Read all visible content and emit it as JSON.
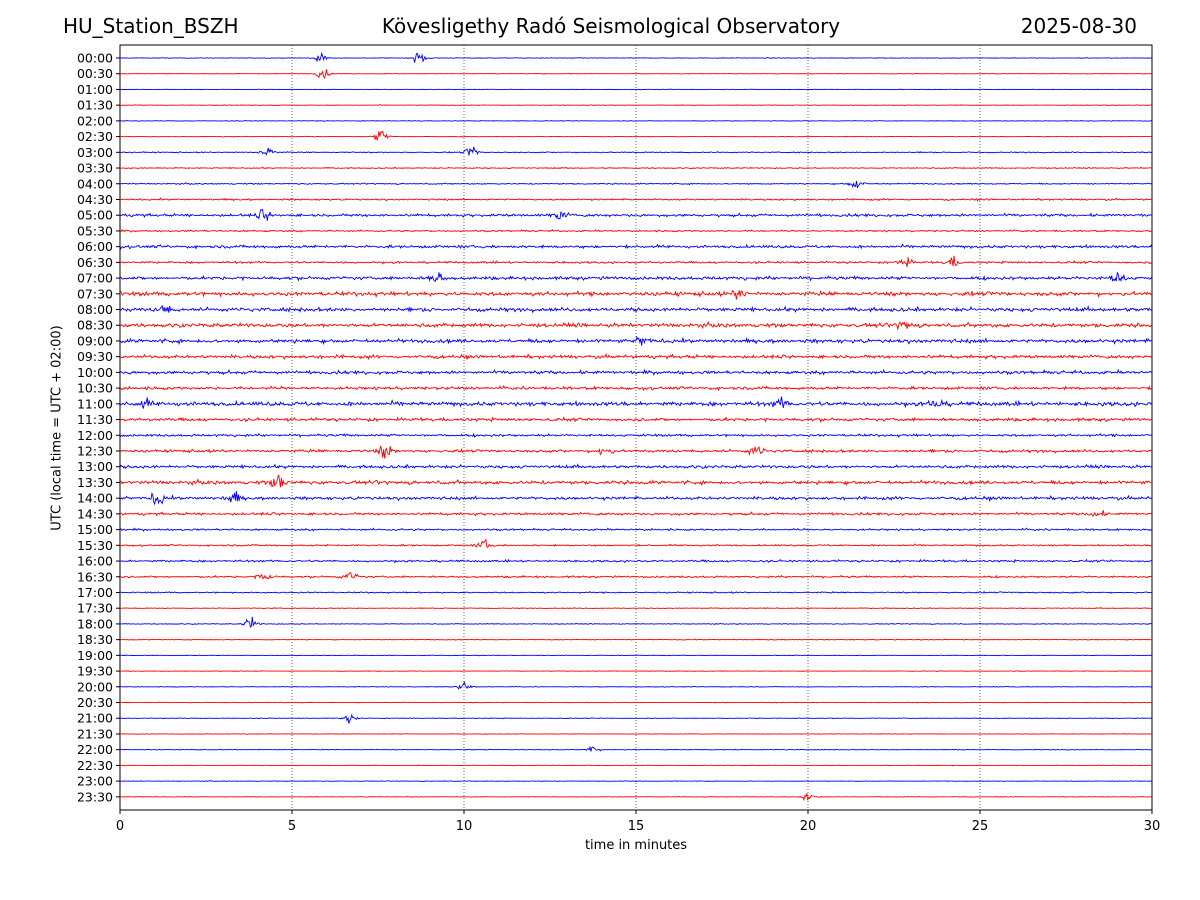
{
  "header": {
    "station": "HU_Station_BSZH",
    "title": "Kövesligethy Radó Seismological Observatory",
    "date": "2025-08-30"
  },
  "chart_data": {
    "type": "line",
    "title": "Kövesligethy Radó Seismological Observatory",
    "xlabel": "time in minutes",
    "ylabel": "UTC (local time = UTC + 02:00)",
    "xlim": [
      0,
      30
    ],
    "xticks": [
      0,
      5,
      10,
      15,
      20,
      25,
      30
    ],
    "grid": "vertical dotted at x ticks",
    "colors": {
      "even_rows": "#0000ff",
      "odd_rows": "#ff0000"
    },
    "rows": [
      "00:00",
      "00:30",
      "01:00",
      "01:30",
      "02:00",
      "02:30",
      "03:00",
      "03:30",
      "04:00",
      "04:30",
      "05:00",
      "05:30",
      "06:00",
      "06:30",
      "07:00",
      "07:30",
      "08:00",
      "08:30",
      "09:00",
      "09:30",
      "10:00",
      "10:30",
      "11:00",
      "11:30",
      "12:00",
      "12:30",
      "13:00",
      "13:30",
      "14:00",
      "14:30",
      "15:00",
      "15:30",
      "16:00",
      "16:30",
      "17:00",
      "17:30",
      "18:00",
      "18:30",
      "19:00",
      "19:30",
      "20:00",
      "20:30",
      "21:00",
      "21:30",
      "22:00",
      "22:30",
      "23:00",
      "23:30"
    ],
    "noise_level": [
      0.12,
      0.1,
      0.1,
      0.12,
      0.12,
      0.12,
      0.2,
      0.2,
      0.22,
      0.3,
      0.5,
      0.3,
      0.55,
      0.4,
      0.6,
      0.75,
      0.7,
      0.7,
      0.7,
      0.6,
      0.6,
      0.55,
      0.8,
      0.6,
      0.45,
      0.5,
      0.55,
      0.65,
      0.55,
      0.45,
      0.35,
      0.3,
      0.4,
      0.35,
      0.25,
      0.15,
      0.15,
      0.15,
      0.1,
      0.1,
      0.12,
      0.12,
      0.12,
      0.1,
      0.12,
      0.1,
      0.1,
      0.1
    ],
    "bursts": [
      {
        "row": "00:00",
        "t": 5.8,
        "amp": 2.0
      },
      {
        "row": "00:00",
        "t": 8.7,
        "amp": 2.5
      },
      {
        "row": "00:30",
        "t": 5.9,
        "amp": 2.0
      },
      {
        "row": "02:30",
        "t": 7.6,
        "amp": 3.0
      },
      {
        "row": "03:00",
        "t": 4.3,
        "amp": 2.5
      },
      {
        "row": "03:00",
        "t": 10.2,
        "amp": 2.0
      },
      {
        "row": "04:00",
        "t": 21.4,
        "amp": 2.5
      },
      {
        "row": "05:00",
        "t": 4.2,
        "amp": 2.5
      },
      {
        "row": "05:00",
        "t": 12.8,
        "amp": 2.0
      },
      {
        "row": "06:30",
        "t": 22.8,
        "amp": 2.0
      },
      {
        "row": "06:30",
        "t": 24.2,
        "amp": 2.2
      },
      {
        "row": "07:00",
        "t": 9.2,
        "amp": 2.5
      },
      {
        "row": "07:00",
        "t": 29.0,
        "amp": 2.0
      },
      {
        "row": "07:30",
        "t": 18.0,
        "amp": 2.0
      },
      {
        "row": "08:00",
        "t": 1.3,
        "amp": 2.0
      },
      {
        "row": "08:30",
        "t": 22.8,
        "amp": 2.0
      },
      {
        "row": "09:00",
        "t": 15.2,
        "amp": 2.0
      },
      {
        "row": "11:00",
        "t": 0.7,
        "amp": 1.8
      },
      {
        "row": "11:00",
        "t": 19.2,
        "amp": 2.0
      },
      {
        "row": "11:00",
        "t": 23.7,
        "amp": 2.2
      },
      {
        "row": "12:30",
        "t": 7.7,
        "amp": 3.0
      },
      {
        "row": "12:30",
        "t": 14.1,
        "amp": 2.5
      },
      {
        "row": "12:30",
        "t": 18.5,
        "amp": 2.5
      },
      {
        "row": "13:30",
        "t": 4.6,
        "amp": 3.5
      },
      {
        "row": "14:00",
        "t": 1.1,
        "amp": 2.5
      },
      {
        "row": "14:00",
        "t": 3.3,
        "amp": 2.5
      },
      {
        "row": "14:30",
        "t": 28.4,
        "amp": 2.0
      },
      {
        "row": "15:30",
        "t": 10.6,
        "amp": 2.0
      },
      {
        "row": "16:30",
        "t": 4.2,
        "amp": 2.0
      },
      {
        "row": "16:30",
        "t": 6.7,
        "amp": 2.0
      },
      {
        "row": "18:00",
        "t": 3.8,
        "amp": 2.5
      },
      {
        "row": "20:00",
        "t": 10.0,
        "amp": 1.8
      },
      {
        "row": "21:00",
        "t": 6.7,
        "amp": 2.0
      },
      {
        "row": "22:00",
        "t": 13.7,
        "amp": 2.0
      },
      {
        "row": "23:30",
        "t": 20.0,
        "amp": 1.5
      }
    ]
  }
}
